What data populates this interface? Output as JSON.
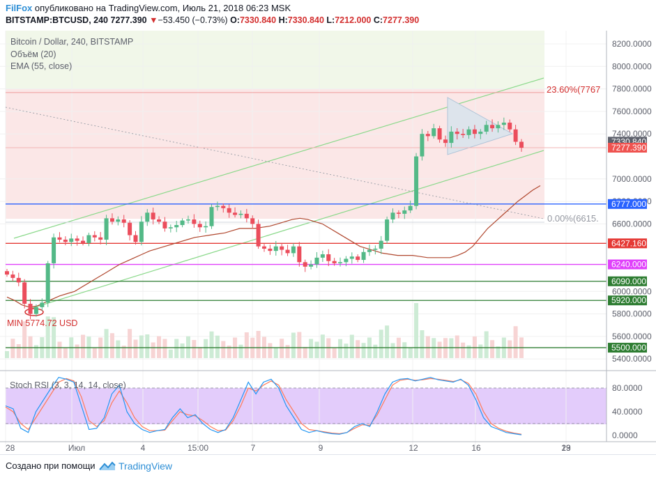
{
  "header": {
    "brand": "FilFox",
    "published": " опубликовано на TradingView.com, Июль 21, 2018 06:23 MSK",
    "symbol": "BITSTAMP:BTCUSD, 240",
    "last": "7277.390",
    "change": "−53.450 (−0.73%)",
    "o_label": "O:",
    "o_value": "7330.840",
    "h_label": "H:",
    "h_value": "7330.840",
    "l_label": "L:",
    "l_value": "7212.000",
    "c_label": "C:",
    "c_value": "7277.390"
  },
  "legend": {
    "title": "Bitcoin / Dollar, 240, BITSTAMP",
    "volume": "Объём (20)",
    "ema": "EMA (55, close)",
    "stoch": "Stoch RSI (3, 3, 14, 14, close)"
  },
  "annotations": {
    "fib_top": "23.60%(7767",
    "fib_bottom": "0.00%(6615.",
    "min": "MIN 5774.72 USD"
  },
  "footer": {
    "created": "Создано при помощи",
    "logo": "TradingView"
  },
  "chart_data": {
    "type": "candlestick",
    "y_ticks": [
      "8200.0000",
      "8000.0000",
      "7800.0000",
      "7600.0000",
      "7400.0000",
      "7000.0000",
      "6800.0000",
      "6600.0000",
      "6000.0000",
      "5800.0000",
      "5600.0000",
      "5400.0000"
    ],
    "x_ticks": [
      "28",
      "Июл",
      "4",
      "15:00",
      "7",
      "9",
      "12",
      "16",
      "19",
      "23"
    ],
    "stoch_ticks": [
      "80.0000",
      "40.0000",
      "0.0000"
    ],
    "price_labels": [
      {
        "text": "7330.840",
        "value": 7330.84,
        "color": "#5d606b"
      },
      {
        "text": "7277.390",
        "value": 7277.39,
        "color": "#ef5350"
      },
      {
        "text": "6777.000",
        "value": 6777,
        "color": "#2962ff"
      },
      {
        "text": "6427.160",
        "value": 6427.16,
        "color": "#e53935"
      },
      {
        "text": "6240.000",
        "value": 6240,
        "color": "#e040fb"
      },
      {
        "text": "6090.000",
        "value": 6090,
        "color": "#2e7d32"
      },
      {
        "text": "5920.000",
        "value": 5920,
        "color": "#2e7d32"
      },
      {
        "text": "5500.000",
        "value": 5500,
        "color": "#2e7d32"
      }
    ],
    "fib_levels": [
      7767,
      6615
    ],
    "close": [
      6150,
      6120,
      6080,
      5890,
      5800,
      5860,
      5900,
      6250,
      6480,
      6460,
      6440,
      6470,
      6450,
      6430,
      6500,
      6480,
      6460,
      6650,
      6620,
      6640,
      6610,
      6500,
      6440,
      6620,
      6700,
      6640,
      6620,
      6560,
      6570,
      6590,
      6630,
      6640,
      6600,
      6570,
      6580,
      6750,
      6760,
      6740,
      6700,
      6680,
      6690,
      6650,
      6600,
      6400,
      6380,
      6360,
      6400,
      6370,
      6340,
      6400,
      6260,
      6220,
      6240,
      6300,
      6330,
      6270,
      6250,
      6260,
      6290,
      6310,
      6280,
      6350,
      6370,
      6380,
      6450,
      6640,
      6700,
      6690,
      6720,
      6760,
      7200,
      7400,
      7380,
      7450,
      7350,
      7320,
      7420,
      7400,
      7390,
      7440,
      7400,
      7420,
      7480,
      7450,
      7480,
      7500,
      7440,
      7330,
      7277
    ],
    "ema55": [
      5950,
      5920,
      5880,
      5860,
      5870,
      5900,
      5930,
      5960,
      5980,
      6000,
      6040,
      6080,
      6120,
      6160,
      6200,
      6240,
      6270,
      6300,
      6330,
      6360,
      6380,
      6400,
      6420,
      6440,
      6460,
      6480,
      6490,
      6500,
      6510,
      6520,
      6540,
      6560,
      6560,
      6560,
      6570,
      6580,
      6600,
      6620,
      6640,
      6650,
      6640,
      6620,
      6600,
      6560,
      6520,
      6480,
      6440,
      6400,
      6380,
      6360,
      6340,
      6330,
      6320,
      6320,
      6320,
      6310,
      6300,
      6300,
      6300,
      6300,
      6320,
      6350,
      6400,
      6480,
      6560,
      6620,
      6680,
      6740,
      6800,
      6850,
      6900,
      6940
    ],
    "stoch_k": [
      50,
      45,
      12,
      5,
      40,
      60,
      80,
      98,
      95,
      90,
      50,
      10,
      12,
      30,
      70,
      85,
      40,
      20,
      10,
      5,
      8,
      10,
      30,
      45,
      30,
      35,
      20,
      10,
      5,
      10,
      30,
      60,
      90,
      70,
      90,
      95,
      80,
      50,
      30,
      10,
      5,
      8,
      5,
      3,
      2,
      5,
      15,
      20,
      15,
      40,
      70,
      90,
      95,
      96,
      92,
      95,
      98,
      94,
      92,
      90,
      95,
      85,
      60,
      30,
      15,
      10,
      5,
      3,
      1
    ],
    "stoch_d": [
      48,
      40,
      20,
      10,
      30,
      50,
      70,
      90,
      96,
      92,
      65,
      25,
      15,
      25,
      55,
      75,
      55,
      30,
      15,
      8,
      8,
      9,
      25,
      40,
      35,
      33,
      25,
      15,
      8,
      9,
      25,
      50,
      80,
      75,
      85,
      92,
      85,
      60,
      40,
      20,
      10,
      8,
      6,
      4,
      3,
      5,
      12,
      18,
      17,
      35,
      60,
      85,
      93,
      95,
      93,
      94,
      96,
      95,
      93,
      91,
      94,
      88,
      70,
      40,
      20,
      12,
      7,
      4,
      2
    ]
  }
}
